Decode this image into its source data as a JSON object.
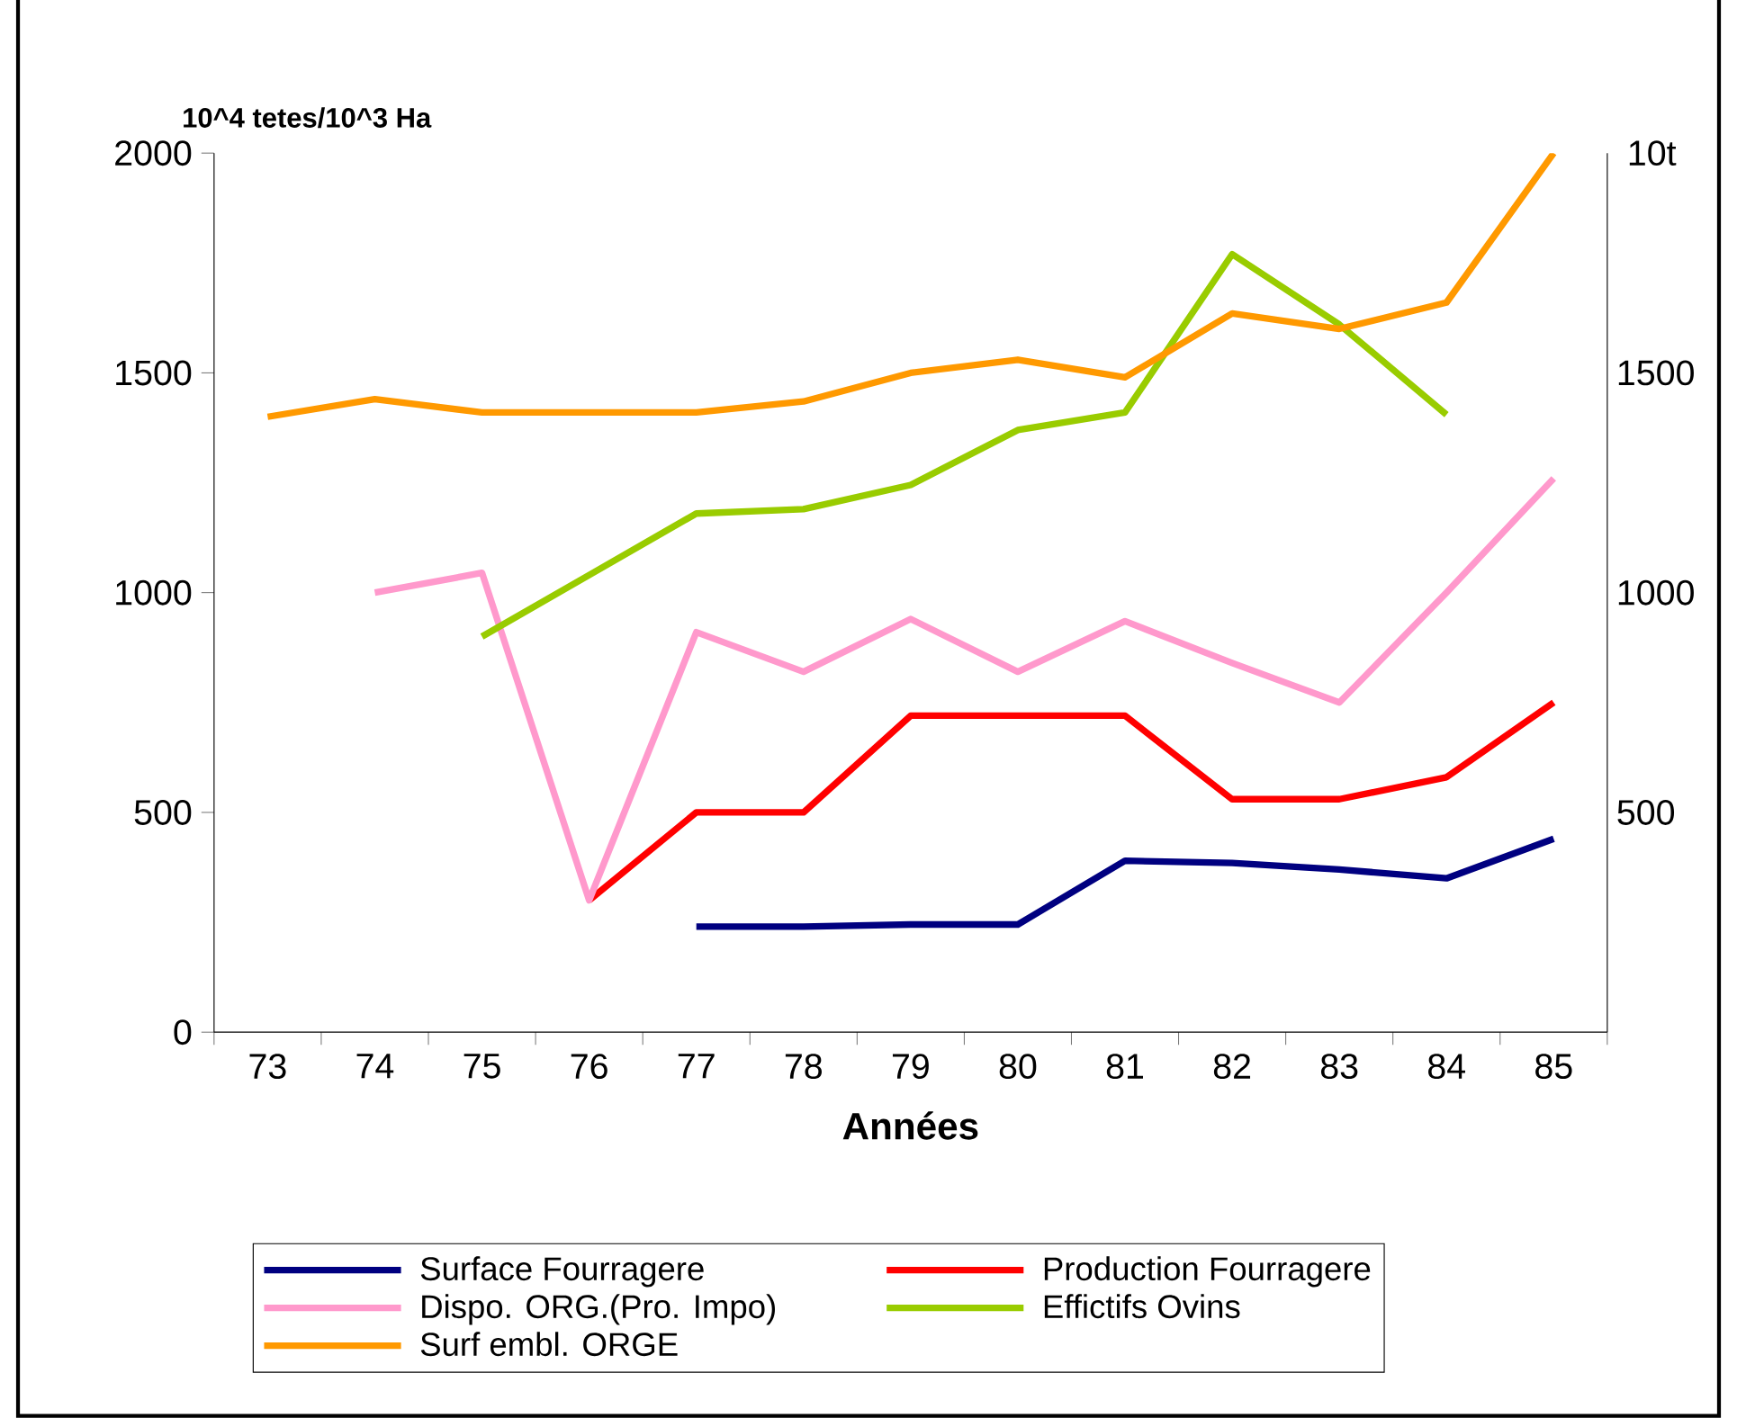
{
  "chart_data": {
    "type": "line",
    "xlabel": "Années",
    "ylabel": "10^4 tetes/10^3 Ha",
    "categories": [
      "73",
      "74",
      "75",
      "76",
      "77",
      "78",
      "79",
      "80",
      "81",
      "82",
      "83",
      "84",
      "85"
    ],
    "series": [
      {
        "name": "Surface Fourragere",
        "color": "#000080",
        "values": [
          null,
          null,
          null,
          null,
          240,
          240,
          245,
          245,
          390,
          385,
          370,
          350,
          440
        ]
      },
      {
        "name": "Production Fourragere",
        "color": "#ff0000",
        "values": [
          null,
          null,
          null,
          300,
          500,
          500,
          720,
          720,
          720,
          530,
          530,
          580,
          750
        ]
      },
      {
        "name": "Dispo. ORG.(Pro. Impo)",
        "color": "#ff99cc",
        "values": [
          null,
          1000,
          1045,
          300,
          910,
          820,
          940,
          820,
          935,
          840,
          750,
          1000,
          1260
        ]
      },
      {
        "name": "Effictifs  Ovins",
        "color": "#99cc00",
        "values": [
          null,
          null,
          900,
          1040,
          1180,
          1190,
          1245,
          1370,
          1410,
          1770,
          1610,
          1405,
          null
        ]
      },
      {
        "name": "Surf embl. ORGE",
        "color": "#ff9900",
        "values": [
          1400,
          1440,
          1410,
          1410,
          1410,
          1435,
          1500,
          1530,
          1490,
          1635,
          1600,
          1660,
          2000
        ]
      }
    ],
    "ylim": [
      0,
      2000
    ],
    "yticks": [
      0,
      500,
      1000,
      1500,
      2000
    ],
    "y2label": "10t",
    "y2lim": [
      0,
      2000
    ],
    "y2ticks": [
      1500,
      1000,
      500
    ],
    "grid": false,
    "legend": "bottom",
    "marker": "none",
    "line_style": "solid"
  }
}
